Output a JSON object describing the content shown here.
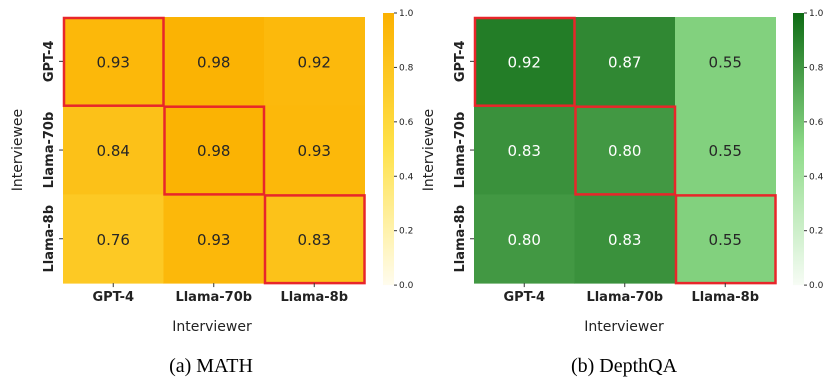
{
  "chart_data": [
    {
      "type": "heatmap",
      "caption": "(a) MATH",
      "xlabel": "Interviewer",
      "ylabel": "Interviewee",
      "x_categories": [
        "GPT-4",
        "Llama-70b",
        "Llama-8b"
      ],
      "y_categories": [
        "GPT-4",
        "Llama-70b",
        "Llama-8b"
      ],
      "values": [
        [
          0.93,
          0.98,
          0.92
        ],
        [
          0.84,
          0.98,
          0.93
        ],
        [
          0.76,
          0.93,
          0.83
        ]
      ],
      "value_labels": [
        [
          "0.93",
          "0.98",
          "0.92"
        ],
        [
          "0.84",
          "0.98",
          "0.93"
        ],
        [
          "0.76",
          "0.93",
          "0.83"
        ]
      ],
      "highlighted_cells": [
        [
          0,
          0
        ],
        [
          1,
          1
        ],
        [
          2,
          2
        ]
      ],
      "highlight_color": "#e8262a",
      "colormap": [
        "#fffcee",
        "#ffe24a",
        "#fbb100"
      ],
      "colorbar_range": [
        0.0,
        1.0
      ],
      "colorbar_ticks": [
        "0.0",
        "0.2",
        "0.4",
        "0.6",
        "0.8",
        "1.0"
      ]
    },
    {
      "type": "heatmap",
      "caption": "(b) DepthQA",
      "xlabel": "Interviewer",
      "ylabel": "Interviewee",
      "x_categories": [
        "GPT-4",
        "Llama-70b",
        "Llama-8b"
      ],
      "y_categories": [
        "GPT-4",
        "Llama-70b",
        "Llama-8b"
      ],
      "values": [
        [
          0.92,
          0.87,
          0.55
        ],
        [
          0.83,
          0.8,
          0.55
        ],
        [
          0.8,
          0.83,
          0.55
        ]
      ],
      "value_labels": [
        [
          "0.92",
          "0.87",
          "0.55"
        ],
        [
          "0.83",
          "0.80",
          "0.55"
        ],
        [
          "0.80",
          "0.83",
          "0.55"
        ]
      ],
      "highlighted_cells": [
        [
          0,
          0
        ],
        [
          1,
          1
        ],
        [
          2,
          2
        ]
      ],
      "highlight_color": "#e8262a",
      "colormap": [
        "#f7fcf5",
        "#8fdc8a",
        "#0e6b14"
      ],
      "colorbar_range": [
        0.0,
        1.0
      ],
      "colorbar_ticks": [
        "0.0",
        "0.2",
        "0.4",
        "0.6",
        "0.8",
        "1.0"
      ]
    }
  ]
}
